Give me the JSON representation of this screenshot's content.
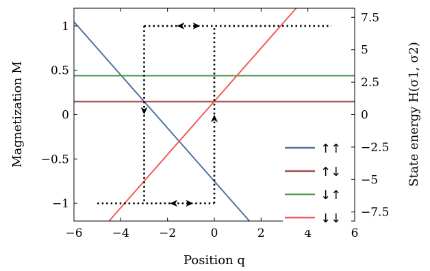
{
  "chart_data": {
    "type": "line",
    "xlabel": "Position q",
    "ylabel_left": "Magnetization M",
    "ylabel_right": "State energy H(σ1, σ2)",
    "xlim": [
      -6,
      6
    ],
    "ylim_left": [
      -1.2,
      1.2
    ],
    "ylim_right": [
      -8.2,
      8.2
    ],
    "x_ticks": [
      -6,
      -4,
      -2,
      0,
      2,
      4,
      6
    ],
    "x_tick_labels": [
      "−6",
      "−4",
      "−2",
      "0",
      "2",
      "4",
      "6"
    ],
    "y_left_ticks": [
      1,
      0.5,
      0,
      -0.5,
      -1
    ],
    "y_left_tick_labels": [
      "1",
      "0.5",
      "0",
      "−0.5",
      "−1"
    ],
    "y_right_ticks": [
      7.5,
      5,
      2.5,
      0,
      -2.5,
      -5,
      -7.5
    ],
    "y_right_tick_labels": [
      "7.5",
      "5",
      "2.5",
      "0",
      "−2.5",
      "−5",
      "−7.5"
    ],
    "grid": false,
    "legend_position": "bottom-right",
    "series": [
      {
        "name": "↑↑",
        "color": "#4f71a0",
        "axis": "right",
        "x": [
          -6,
          1.5
        ],
        "y": [
          7.15,
          -8.2
        ]
      },
      {
        "name": "↑↓",
        "color": "#a04a4a",
        "axis": "right",
        "x": [
          -6,
          6
        ],
        "y": [
          1.0,
          1.0
        ]
      },
      {
        "name": "↓↑",
        "color": "#4c9a4c",
        "axis": "right",
        "x": [
          -6,
          6
        ],
        "y": [
          3.0,
          3.0
        ]
      },
      {
        "name": "↓↓",
        "color": "#f45a5a",
        "axis": "right",
        "x": [
          -4.5,
          3.5
        ],
        "y": [
          -8.2,
          8.2
        ]
      }
    ],
    "hysteresis": {
      "axis": "left",
      "style": "dotted",
      "color": "#000000",
      "upper_branch": {
        "x": [
          -3,
          5
        ],
        "y": [
          1,
          1
        ]
      },
      "lower_branch": {
        "x": [
          -5,
          0
        ],
        "y": [
          -1,
          -1
        ]
      },
      "down_jump": {
        "x": [
          -3,
          -3
        ],
        "y": [
          1,
          -1
        ]
      },
      "up_jump": {
        "x": [
          0,
          0
        ],
        "y": [
          -1,
          1
        ]
      },
      "arrows": [
        {
          "type": "double",
          "x": [
            -1.6,
            -0.6
          ],
          "y": 1
        },
        {
          "type": "double",
          "x": [
            -1.9,
            -0.9
          ],
          "y": -1
        },
        {
          "type": "down",
          "x": -3,
          "y": 0
        },
        {
          "type": "up",
          "x": 0,
          "y": 0
        }
      ]
    }
  }
}
